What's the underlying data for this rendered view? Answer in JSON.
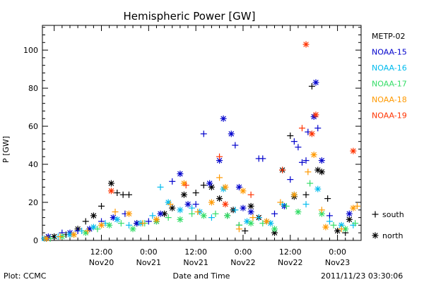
{
  "chart_data": {
    "type": "scatter",
    "title": "Hemispheric Power [GW]",
    "ylabel": "P [GW]",
    "xlabel": "Date and Time",
    "ylim": [
      0,
      113
    ],
    "xlim": [
      "2011-11-19 21:00",
      "2011-11-23 06:00"
    ],
    "y_ticks": [
      0,
      20,
      40,
      60,
      80,
      100
    ],
    "x_ticks": [
      {
        "time": "2011-11-20 12:00",
        "label1": "12:00",
        "label2": "Nov20"
      },
      {
        "time": "2011-11-21 00:00",
        "label1": "0:00",
        "label2": "Nov21"
      },
      {
        "time": "2011-11-21 12:00",
        "label1": "12:00",
        "label2": "Nov21"
      },
      {
        "time": "2011-11-22 00:00",
        "label1": "0:00",
        "label2": "Nov22"
      },
      {
        "time": "2011-11-22 12:00",
        "label1": "12:00",
        "label2": "Nov22"
      },
      {
        "time": "2011-11-23 00:00",
        "label1": "0:00",
        "label2": "Nov23"
      }
    ],
    "legend_placement": "right",
    "marker_legend": [
      {
        "symbol": "+",
        "label": "south"
      },
      {
        "symbol": "*",
        "label": "north"
      }
    ],
    "grid": false,
    "series": [
      {
        "name": "METP-02",
        "color": "#000000",
        "points": [
          [
            "2011-11-19 22:00",
            1,
            "+"
          ],
          [
            "2011-11-20 00:00",
            2,
            "*"
          ],
          [
            "2011-11-20 03:00",
            3,
            "+"
          ],
          [
            "2011-11-20 06:00",
            6,
            "*"
          ],
          [
            "2011-11-20 08:00",
            10,
            "+"
          ],
          [
            "2011-11-20 10:00",
            13,
            "*"
          ],
          [
            "2011-11-20 12:00",
            18,
            "+"
          ],
          [
            "2011-11-20 14:30",
            30,
            "*"
          ],
          [
            "2011-11-20 16:00",
            25,
            "+"
          ],
          [
            "2011-11-20 17:30",
            24,
            "+"
          ],
          [
            "2011-11-20 19:00",
            24,
            "+"
          ],
          [
            "2011-11-20 21:00",
            9,
            "*"
          ],
          [
            "2011-11-21 02:00",
            10,
            "*"
          ],
          [
            "2011-11-21 04:00",
            14,
            "*"
          ],
          [
            "2011-11-21 06:00",
            17,
            "*"
          ],
          [
            "2011-11-21 09:00",
            24,
            "*"
          ],
          [
            "2011-11-21 12:00",
            25,
            "+"
          ],
          [
            "2011-11-21 14:00",
            29,
            "+"
          ],
          [
            "2011-11-21 16:00",
            28,
            "*"
          ],
          [
            "2011-11-21 18:00",
            22,
            "*"
          ],
          [
            "2011-11-21 20:00",
            13,
            "+"
          ],
          [
            "2011-11-21 21:30",
            16,
            "*"
          ],
          [
            "2011-11-21 23:00",
            8,
            "+"
          ],
          [
            "2011-11-22 00:30",
            5,
            "+"
          ],
          [
            "2011-11-22 02:00",
            18,
            "*"
          ],
          [
            "2011-11-22 04:00",
            12,
            "*"
          ],
          [
            "2011-11-22 06:00",
            10,
            "+"
          ],
          [
            "2011-11-22 08:00",
            4,
            "*"
          ],
          [
            "2011-11-22 10:00",
            37,
            "*"
          ],
          [
            "2011-11-22 12:00",
            55,
            "+"
          ],
          [
            "2011-11-22 13:00",
            23,
            "*"
          ],
          [
            "2011-11-22 16:00",
            24,
            "+"
          ],
          [
            "2011-11-22 17:30",
            81,
            "+"
          ],
          [
            "2011-11-22 19:00",
            37,
            "*"
          ],
          [
            "2011-11-22 20:00",
            36,
            "*"
          ],
          [
            "2011-11-22 21:30",
            22,
            "+"
          ],
          [
            "2011-11-23 00:00",
            5,
            "*"
          ],
          [
            "2011-11-23 02:00",
            4,
            "+"
          ],
          [
            "2011-11-23 03:00",
            11,
            "*"
          ]
        ]
      },
      {
        "name": "NOAA-15",
        "color": "#0000cc",
        "points": [
          [
            "2011-11-19 22:30",
            2,
            "*"
          ],
          [
            "2011-11-20 02:00",
            4,
            "+"
          ],
          [
            "2011-11-20 04:00",
            4,
            "*"
          ],
          [
            "2011-11-20 06:00",
            5,
            "+"
          ],
          [
            "2011-11-20 09:00",
            6,
            "*"
          ],
          [
            "2011-11-20 12:00",
            10,
            "+"
          ],
          [
            "2011-11-20 15:00",
            12,
            "*"
          ],
          [
            "2011-11-20 18:00",
            14,
            "+"
          ],
          [
            "2011-11-20 21:00",
            9,
            "*"
          ],
          [
            "2011-11-21 00:00",
            10,
            "+"
          ],
          [
            "2011-11-21 03:00",
            14,
            "*"
          ],
          [
            "2011-11-21 06:00",
            31,
            "+"
          ],
          [
            "2011-11-21 08:00",
            35,
            "*"
          ],
          [
            "2011-11-21 10:00",
            19,
            "*"
          ],
          [
            "2011-11-21 12:00",
            19,
            "+"
          ],
          [
            "2011-11-21 14:00",
            56,
            "+"
          ],
          [
            "2011-11-21 15:30",
            30,
            "*"
          ],
          [
            "2011-11-21 18:00",
            42,
            "*"
          ],
          [
            "2011-11-21 19:00",
            64,
            "*"
          ],
          [
            "2011-11-21 21:00",
            56,
            "*"
          ],
          [
            "2011-11-21 22:00",
            50,
            "+"
          ],
          [
            "2011-11-21 23:00",
            28,
            "*"
          ],
          [
            "2011-11-22 00:00",
            17,
            "*"
          ],
          [
            "2011-11-22 02:00",
            15,
            "*"
          ],
          [
            "2011-11-22 04:00",
            43,
            "+"
          ],
          [
            "2011-11-22 05:00",
            43,
            "+"
          ],
          [
            "2011-11-22 08:00",
            14,
            "+"
          ],
          [
            "2011-11-22 10:30",
            18,
            "*"
          ],
          [
            "2011-11-22 12:00",
            32,
            "+"
          ],
          [
            "2011-11-22 13:00",
            52,
            "+"
          ],
          [
            "2011-11-22 14:00",
            49,
            "+"
          ],
          [
            "2011-11-22 15:00",
            41,
            "+"
          ],
          [
            "2011-11-22 16:00",
            42,
            "+"
          ],
          [
            "2011-11-22 16:30",
            57,
            "+"
          ],
          [
            "2011-11-22 18:00",
            65,
            "*"
          ],
          [
            "2011-11-22 18:30",
            83,
            "*"
          ],
          [
            "2011-11-22 19:00",
            59,
            "+"
          ],
          [
            "2011-11-22 20:00",
            42,
            "*"
          ],
          [
            "2011-11-22 22:00",
            13,
            "+"
          ],
          [
            "2011-11-23 03:00",
            14,
            "*"
          ]
        ]
      },
      {
        "name": "NOAA-16",
        "color": "#00bbee",
        "points": [
          [
            "2011-11-19 21:30",
            1,
            "*"
          ],
          [
            "2011-11-20 01:00",
            2,
            "+"
          ],
          [
            "2011-11-20 04:00",
            3,
            "*"
          ],
          [
            "2011-11-20 07:00",
            5,
            "+"
          ],
          [
            "2011-11-20 10:00",
            7,
            "*"
          ],
          [
            "2011-11-20 13:00",
            9,
            "+"
          ],
          [
            "2011-11-20 16:00",
            11,
            "*"
          ],
          [
            "2011-11-20 19:00",
            8,
            "+"
          ],
          [
            "2011-11-20 22:00",
            9,
            "*"
          ],
          [
            "2011-11-21 01:00",
            13,
            "+"
          ],
          [
            "2011-11-21 03:00",
            28,
            "+"
          ],
          [
            "2011-11-21 05:00",
            20,
            "*"
          ],
          [
            "2011-11-21 08:00",
            16,
            "*"
          ],
          [
            "2011-11-21 11:00",
            17,
            "+"
          ],
          [
            "2011-11-21 13:00",
            15,
            "*"
          ],
          [
            "2011-11-21 16:00",
            12,
            "+"
          ],
          [
            "2011-11-21 19:00",
            27,
            "*"
          ],
          [
            "2011-11-21 22:00",
            16,
            "+"
          ],
          [
            "2011-11-22 01:00",
            10,
            "*"
          ],
          [
            "2011-11-22 04:00",
            12,
            "+"
          ],
          [
            "2011-11-22 07:00",
            9,
            "*"
          ],
          [
            "2011-11-22 10:00",
            19,
            "+"
          ],
          [
            "2011-11-22 13:00",
            24,
            "*"
          ],
          [
            "2011-11-22 16:00",
            19,
            "+"
          ],
          [
            "2011-11-22 19:00",
            27,
            "*"
          ],
          [
            "2011-11-22 22:00",
            10,
            "+"
          ],
          [
            "2011-11-23 01:00",
            8,
            "*"
          ],
          [
            "2011-11-23 04:00",
            8,
            "+"
          ]
        ]
      },
      {
        "name": "NOAA-17",
        "color": "#33dd66",
        "points": [
          [
            "2011-11-19 23:00",
            1,
            "+"
          ],
          [
            "2011-11-20 02:00",
            2,
            "*"
          ],
          [
            "2011-11-20 05:00",
            3,
            "+"
          ],
          [
            "2011-11-20 08:00",
            4,
            "*"
          ],
          [
            "2011-11-20 11:00",
            6,
            "+"
          ],
          [
            "2011-11-20 14:00",
            8,
            "*"
          ],
          [
            "2011-11-20 17:00",
            9,
            "+"
          ],
          [
            "2011-11-20 20:00",
            6,
            "*"
          ],
          [
            "2011-11-20 23:00",
            9,
            "+"
          ],
          [
            "2011-11-21 02:00",
            10,
            "*"
          ],
          [
            "2011-11-21 05:00",
            12,
            "+"
          ],
          [
            "2011-11-21 08:00",
            11,
            "*"
          ],
          [
            "2011-11-21 11:00",
            14,
            "+"
          ],
          [
            "2011-11-21 14:00",
            13,
            "*"
          ],
          [
            "2011-11-21 17:00",
            14,
            "+"
          ],
          [
            "2011-11-21 20:00",
            13,
            "*"
          ],
          [
            "2011-11-21 23:00",
            8,
            "+"
          ],
          [
            "2011-11-22 02:00",
            9,
            "*"
          ],
          [
            "2011-11-22 05:00",
            9,
            "+"
          ],
          [
            "2011-11-22 08:00",
            6,
            "*"
          ],
          [
            "2011-11-22 11:00",
            18,
            "+"
          ],
          [
            "2011-11-22 14:00",
            15,
            "*"
          ],
          [
            "2011-11-22 17:00",
            30,
            "+"
          ],
          [
            "2011-11-22 20:00",
            14,
            "*"
          ],
          [
            "2011-11-22 23:00",
            8,
            "+"
          ],
          [
            "2011-11-23 02:00",
            6,
            "*"
          ],
          [
            "2011-11-23 04:30",
            9,
            "+"
          ]
        ]
      },
      {
        "name": "NOAA-18",
        "color": "#ff9900",
        "points": [
          [
            "2011-11-19 22:00",
            1,
            "*"
          ],
          [
            "2011-11-20 01:30",
            2,
            "+"
          ],
          [
            "2011-11-20 05:00",
            3,
            "*"
          ],
          [
            "2011-11-20 08:30",
            5,
            "+"
          ],
          [
            "2011-11-20 12:00",
            8,
            "*"
          ],
          [
            "2011-11-20 15:30",
            15,
            "+"
          ],
          [
            "2011-11-20 19:00",
            14,
            "*"
          ],
          [
            "2011-11-20 22:30",
            9,
            "+"
          ],
          [
            "2011-11-21 02:00",
            11,
            "*"
          ],
          [
            "2011-11-21 05:30",
            19,
            "+"
          ],
          [
            "2011-11-21 09:00",
            30,
            "*"
          ],
          [
            "2011-11-21 12:30",
            15,
            "+"
          ],
          [
            "2011-11-21 16:00",
            20,
            "*"
          ],
          [
            "2011-11-21 18:00",
            33,
            "+"
          ],
          [
            "2011-11-21 19:30",
            28,
            "*"
          ],
          [
            "2011-11-21 23:00",
            6,
            "+"
          ],
          [
            "2011-11-22 00:00",
            26,
            "*"
          ],
          [
            "2011-11-22 02:30",
            12,
            "+"
          ],
          [
            "2011-11-22 06:00",
            10,
            "*"
          ],
          [
            "2011-11-22 09:30",
            20,
            "+"
          ],
          [
            "2011-11-22 13:00",
            24,
            "*"
          ],
          [
            "2011-11-22 16:30",
            36,
            "+"
          ],
          [
            "2011-11-22 18:00",
            45,
            "*"
          ],
          [
            "2011-11-22 20:00",
            16,
            "+"
          ],
          [
            "2011-11-22 21:00",
            7,
            "*"
          ],
          [
            "2011-11-23 01:00",
            6,
            "+"
          ],
          [
            "2011-11-23 04:00",
            17,
            "*"
          ],
          [
            "2011-11-23 05:00",
            18,
            "+"
          ]
        ]
      },
      {
        "name": "NOAA-19",
        "color": "#ff3300",
        "points": [
          [
            "2011-11-20 14:30",
            26,
            "*"
          ],
          [
            "2011-11-21 09:30",
            29,
            "+"
          ],
          [
            "2011-11-21 18:00",
            44,
            "+"
          ],
          [
            "2011-11-21 19:30",
            19,
            "*"
          ],
          [
            "2011-11-22 02:00",
            24,
            "+"
          ],
          [
            "2011-11-22 10:00",
            37,
            "+"
          ],
          [
            "2011-11-22 15:00",
            59,
            "+"
          ],
          [
            "2011-11-22 16:00",
            103,
            "*"
          ],
          [
            "2011-11-22 17:30",
            56,
            "*"
          ],
          [
            "2011-11-22 18:30",
            66,
            "*"
          ],
          [
            "2011-11-23 04:00",
            47,
            "*"
          ]
        ]
      }
    ]
  },
  "footer": {
    "plot_credit": "Plot: CCMC",
    "timestamp": "2011/11/23 03:30:06"
  }
}
